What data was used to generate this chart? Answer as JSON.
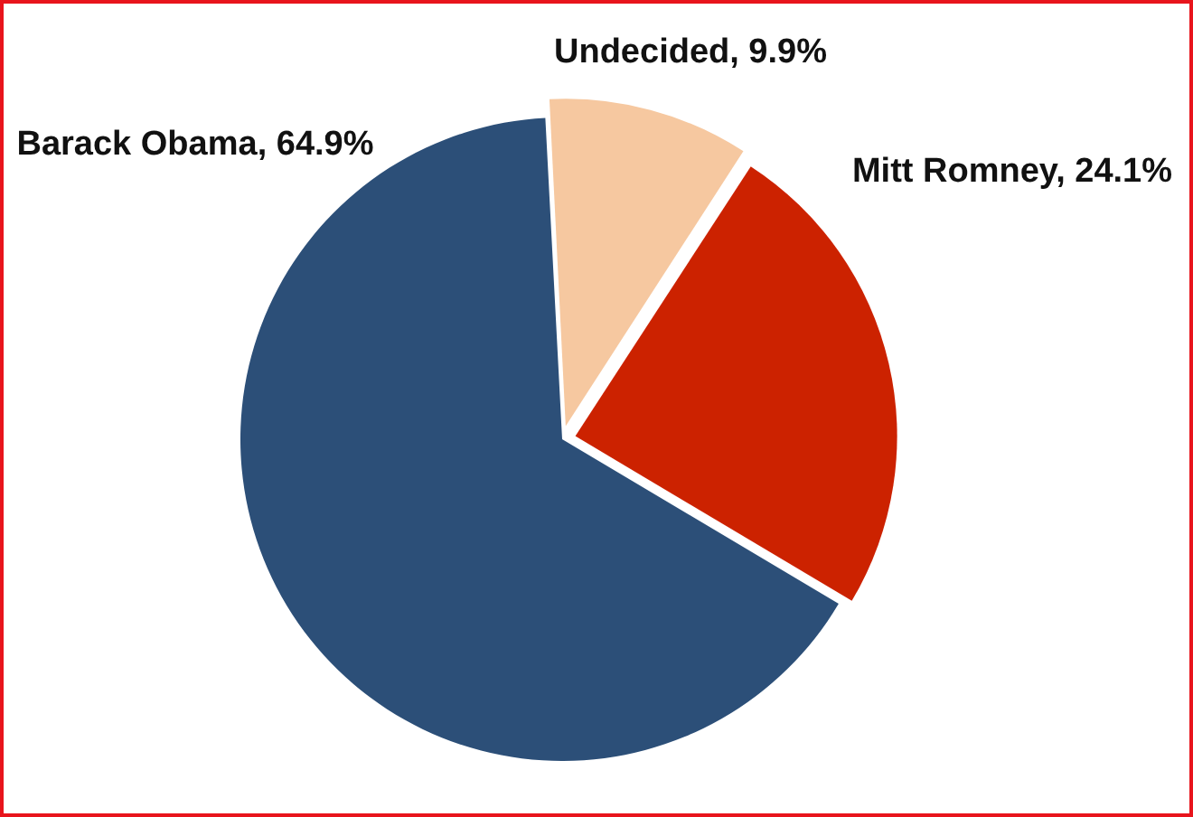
{
  "chart_data": {
    "type": "pie",
    "categories": [
      "Undecided",
      "Mitt Romney",
      "Barack Obama"
    ],
    "values": [
      9.9,
      24.1,
      64.9
    ],
    "colors": [
      "#f6c8a0",
      "#cc2200",
      "#2c4f78"
    ],
    "value_labels": [
      "9.9%",
      "24.1%",
      "64.9%"
    ]
  }
}
